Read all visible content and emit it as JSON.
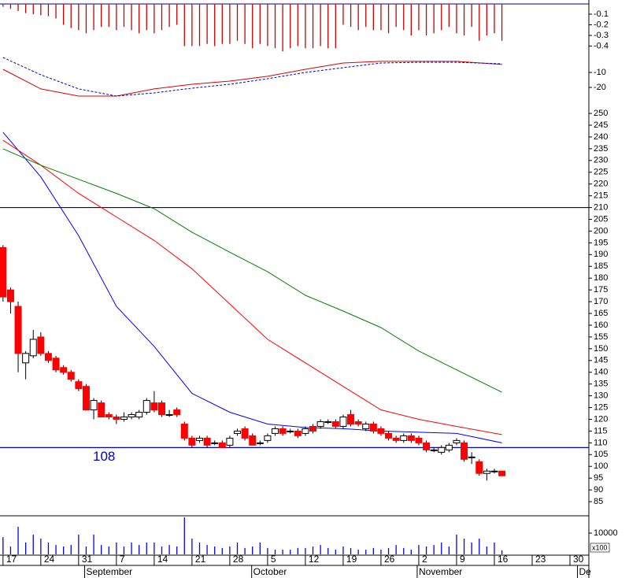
{
  "chart_data": [
    {
      "type": "candlestick",
      "ylim": [
        79,
        254.7
      ],
      "yticks": [
        85,
        90,
        95,
        100,
        105,
        110,
        115,
        120,
        125,
        130,
        135,
        140,
        145,
        150,
        155,
        160,
        165,
        170,
        175,
        180,
        185,
        190,
        195,
        200,
        205,
        210,
        215,
        220,
        225,
        230,
        235,
        240,
        245,
        250
      ],
      "xlim": [
        -0.4,
        77.5
      ],
      "xticks": [
        {
          "value": 0,
          "label": "17"
        },
        {
          "value": 5,
          "label": "24"
        },
        {
          "value": 10,
          "label": "31"
        },
        {
          "value": 15,
          "label": "7"
        },
        {
          "value": 20,
          "label": "14"
        },
        {
          "value": 25,
          "label": "21"
        },
        {
          "value": 30,
          "label": "28"
        },
        {
          "value": 35,
          "label": "5"
        },
        {
          "value": 40,
          "label": "12"
        },
        {
          "value": 45,
          "label": "19"
        },
        {
          "value": 50,
          "label": "26"
        },
        {
          "value": 55,
          "label": "2"
        },
        {
          "value": 60,
          "label": "9"
        },
        {
          "value": 65,
          "label": "16"
        },
        {
          "value": 70,
          "label": "23"
        },
        {
          "value": 75,
          "label": "30"
        }
      ],
      "months": [
        {
          "value": 11,
          "label": "September"
        },
        {
          "value": 33.1,
          "label": "October"
        },
        {
          "value": 55,
          "label": "November"
        },
        {
          "value": 76.2,
          "label": "De"
        }
      ],
      "up_color": "#ffffff",
      "down_color": "#ff0000",
      "open": [
        193,
        175,
        168,
        144,
        147,
        155,
        148,
        146,
        142,
        140,
        136,
        134,
        124,
        127,
        122,
        121,
        120,
        121,
        121,
        123,
        127,
        127,
        122,
        124,
        118,
        112,
        111,
        112,
        110,
        110,
        109,
        114,
        116,
        113,
        110,
        111,
        114,
        116,
        115,
        115,
        114,
        117,
        117,
        119,
        119,
        117,
        122,
        119,
        116,
        118,
        116,
        114,
        112,
        111,
        113,
        112,
        110,
        107,
        106,
        107,
        110,
        110,
        104,
        102,
        97,
        98,
        98
      ],
      "high": [
        194,
        176,
        170,
        149,
        158,
        157,
        149,
        147,
        143,
        141,
        137,
        135,
        129,
        128,
        123,
        122,
        123,
        123,
        124,
        129,
        132,
        128,
        124,
        125,
        119,
        113,
        113,
        113,
        111,
        111,
        113,
        116,
        117,
        114,
        111,
        114,
        117,
        117,
        116,
        116,
        117,
        118,
        120,
        120,
        120,
        122,
        124,
        120,
        119,
        119,
        117,
        115,
        113,
        114,
        114,
        113,
        111,
        108,
        109,
        110,
        112,
        111,
        106,
        103,
        99,
        99,
        98
      ],
      "low": [
        170,
        165,
        140,
        137,
        146,
        147,
        144,
        140,
        139,
        136,
        132,
        124,
        120,
        121,
        120,
        118,
        119,
        120,
        120,
        122,
        123,
        121,
        121,
        121,
        111,
        108,
        110,
        108,
        109,
        108,
        108,
        113,
        111,
        109,
        109,
        110,
        113,
        113,
        114,
        112,
        113,
        114,
        116,
        118,
        116,
        116,
        117,
        117,
        115,
        114,
        113,
        111,
        110,
        110,
        110,
        109,
        106,
        106,
        105,
        106,
        109,
        102,
        101,
        96,
        94,
        97,
        96
      ],
      "close": [
        172,
        170,
        148,
        148,
        154,
        148,
        145,
        141,
        140,
        137,
        133,
        124,
        128,
        121,
        121,
        120,
        121,
        122,
        123,
        128,
        124,
        122,
        122,
        122,
        112,
        109,
        112,
        109,
        110,
        108,
        112,
        115,
        112,
        109,
        110,
        113,
        116,
        114,
        115,
        113,
        116,
        115,
        119,
        119,
        117,
        121,
        118,
        118,
        118,
        115,
        114,
        112,
        111,
        113,
        111,
        110,
        107,
        107,
        108,
        109,
        111,
        103,
        104,
        97,
        98,
        98,
        96
      ],
      "moving_averages": [
        {
          "color": "#0000ff",
          "x": [
            0,
            5,
            10,
            15,
            20,
            25,
            30,
            35,
            40,
            45,
            50,
            55,
            60,
            66
          ],
          "values": [
            242,
            223,
            198,
            168,
            151,
            131,
            123,
            118,
            116.5,
            116,
            115,
            114.5,
            114,
            110
          ]
        },
        {
          "color": "#ff0000",
          "x": [
            0,
            5,
            10,
            15,
            20,
            25,
            30,
            35,
            40,
            45,
            50,
            55,
            60,
            66
          ],
          "values": [
            238.6,
            228,
            216,
            206,
            196,
            184,
            169,
            154,
            144,
            134,
            124,
            120,
            117,
            113.5
          ]
        },
        {
          "color": "#008000",
          "x": [
            0,
            5,
            10,
            15,
            20,
            25,
            30,
            35,
            40,
            45,
            50,
            55,
            60,
            66
          ],
          "values": [
            235,
            228,
            222,
            216,
            209.5,
            199.5,
            191,
            182.7,
            172.7,
            166,
            159,
            149,
            141,
            131.5
          ]
        }
      ],
      "hlines": [
        {
          "value": 210,
          "color": "#000080"
        },
        {
          "value": 108,
          "color": "#0000cd",
          "label": "108"
        }
      ]
    },
    {
      "type": "bar",
      "color": "#cc0000",
      "ylim": [
        -0.45,
        0
      ],
      "yticks": [
        -0.1,
        -0.2,
        -0.3,
        -0.4
      ],
      "values": [
        -0.03,
        -0.05,
        -0.07,
        -0.09,
        -0.1,
        -0.11,
        -0.12,
        -0.14,
        -0.2,
        -0.23,
        -0.25,
        -0.28,
        -0.25,
        -0.22,
        -0.22,
        -0.25,
        -0.22,
        -0.25,
        -0.28,
        -0.25,
        -0.28,
        -0.25,
        -0.22,
        -0.2,
        -0.4,
        -0.4,
        -0.4,
        -0.38,
        -0.4,
        -0.38,
        -0.38,
        -0.35,
        -0.38,
        -0.42,
        -0.38,
        -0.4,
        -0.42,
        -0.45,
        -0.42,
        -0.4,
        -0.42,
        -0.42,
        -0.4,
        -0.42,
        -0.42,
        -0.2,
        -0.22,
        -0.25,
        -0.22,
        -0.25,
        -0.25,
        -0.28,
        -0.22,
        -0.25,
        -0.3,
        -0.25,
        -0.3,
        -0.28,
        -0.25,
        -0.22,
        -0.28,
        -0.3,
        -0.22,
        -0.35,
        -0.3,
        -0.28,
        -0.35
      ]
    },
    {
      "type": "line",
      "ylim": [
        -30,
        4
      ],
      "yticks": [
        -10,
        -20
      ],
      "series": [
        {
          "color": "#dd0000",
          "dashed": false,
          "x": [
            0,
            5,
            10,
            15,
            20,
            25,
            30,
            35,
            40,
            45,
            50,
            55,
            60,
            66
          ],
          "values": [
            -7.9,
            -21,
            -25.8,
            -25.8,
            -21,
            -17.9,
            -15.8,
            -12.6,
            -7.9,
            -3.7,
            -2.6,
            -2.6,
            -2.6,
            -4.7
          ]
        },
        {
          "color": "#0000cc",
          "dashed": true,
          "x": [
            0,
            5,
            10,
            15,
            20,
            25,
            30,
            35,
            40,
            45,
            50,
            55,
            60,
            66
          ],
          "values": [
            0,
            -11.6,
            -21,
            -25.8,
            -23.7,
            -20.5,
            -17.9,
            -14.2,
            -10,
            -6.8,
            -3.7,
            -3.2,
            -3.2,
            -4.2
          ]
        }
      ]
    },
    {
      "type": "bar",
      "color": "#0000ff",
      "ylim": [
        0,
        18000
      ],
      "yticks": [
        10000
      ],
      "unit_label": "x100",
      "values": [
        8100,
        3700,
        13000,
        5600,
        9300,
        7400,
        5600,
        4400,
        3700,
        4400,
        9300,
        3700,
        9300,
        4400,
        3700,
        5600,
        3700,
        5600,
        4400,
        5600,
        5600,
        3700,
        4400,
        3700,
        17400,
        7400,
        5600,
        4400,
        3700,
        3000,
        3700,
        5600,
        3000,
        3700,
        5600,
        3000,
        2200,
        2200,
        2200,
        3000,
        3000,
        3700,
        4400,
        3000,
        2200,
        3700,
        3000,
        2200,
        2200,
        3000,
        2200,
        3000,
        4400,
        3000,
        2200,
        4400,
        3700,
        4400,
        5600,
        3700,
        9300,
        7400,
        5600,
        7400,
        3700,
        5600,
        1900
      ]
    }
  ]
}
